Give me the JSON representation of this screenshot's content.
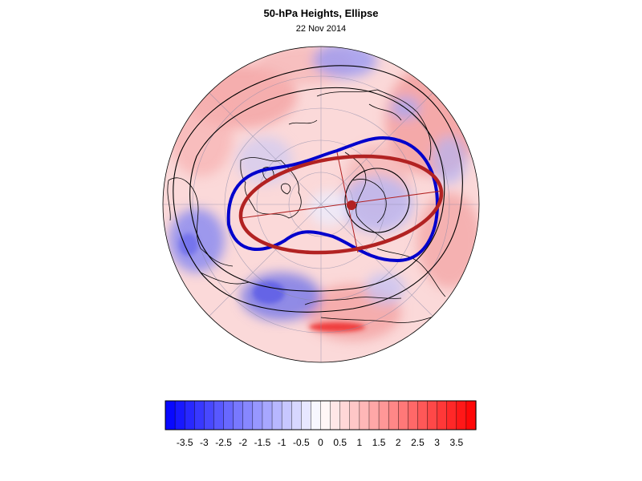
{
  "header": {
    "title": "50-hPa Heights, Ellipse",
    "date": "22 Nov 2014"
  },
  "colorbar": {
    "tick_labels": [
      "-3.5",
      "-3",
      "-2.5",
      "-2",
      "-1.5",
      "-1",
      "-0.5",
      "0",
      "0.5",
      "1",
      "1.5",
      "2",
      "2.5",
      "3",
      "3.5"
    ],
    "min": -4,
    "max": 4,
    "step": 0.25,
    "negative_color": "#0000ff",
    "positive_color": "#ff0000",
    "neutral_color": "#ffffff"
  },
  "map": {
    "projection": "north-polar-stereographic",
    "anomaly_field": "50-hPa height anomalies (shaded)",
    "ellipse_color": "#b22222",
    "contour_color": "#0000cc",
    "coastline_color": "#000000"
  }
}
